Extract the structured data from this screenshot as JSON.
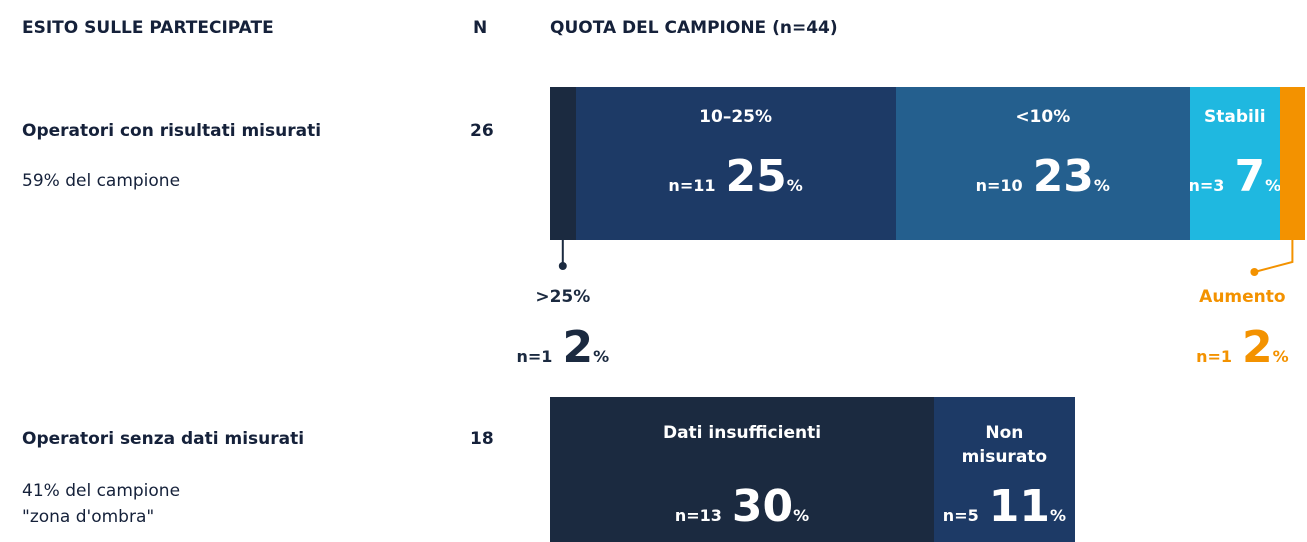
{
  "chart_data": {
    "type": "stacked_bar",
    "headers": [
      "ESITO SULLE PARTECIPATE",
      "N",
      "QUOTA DEL CAMPIONE (n=44)"
    ],
    "unit": "%",
    "rows": [
      {
        "label": "Operatori con risultati misurati",
        "n": 26,
        "notes": [
          "59% del campione"
        ],
        "segments": [
          {
            "name": ">25%",
            "count": 1,
            "count_label": "n=1",
            "value": 2,
            "color": "#1b2a40",
            "label_position": "outside"
          },
          {
            "name": "10–25%",
            "count": 11,
            "count_label": "n=11",
            "value": 25,
            "color": "#1d3a66",
            "label_position": "inside"
          },
          {
            "name": "<10%",
            "count": 10,
            "count_label": "n=10",
            "value": 23,
            "color": "#245f8e",
            "label_position": "inside"
          },
          {
            "name": "Stabili",
            "count": 3,
            "count_label": "n=3",
            "value": 7,
            "color": "#1fb8e0",
            "label_position": "inside"
          },
          {
            "name": "Aumento",
            "count": 1,
            "count_label": "n=1",
            "value": 2,
            "color": "#f39200",
            "label_position": "outside"
          }
        ]
      },
      {
        "label": "Operatori senza dati misurati",
        "n": 18,
        "notes": [
          "41% del campione",
          "\"zona d'ombra\""
        ],
        "segments": [
          {
            "name": "Dati insufficienti",
            "count": 13,
            "count_label": "n=13",
            "value": 30,
            "color": "#1b2a40",
            "label_position": "inside"
          },
          {
            "name": "Non misurato",
            "count": 5,
            "count_label": "n=5",
            "value": 11,
            "color": "#1d3a66",
            "label_position": "inside"
          }
        ]
      }
    ]
  }
}
